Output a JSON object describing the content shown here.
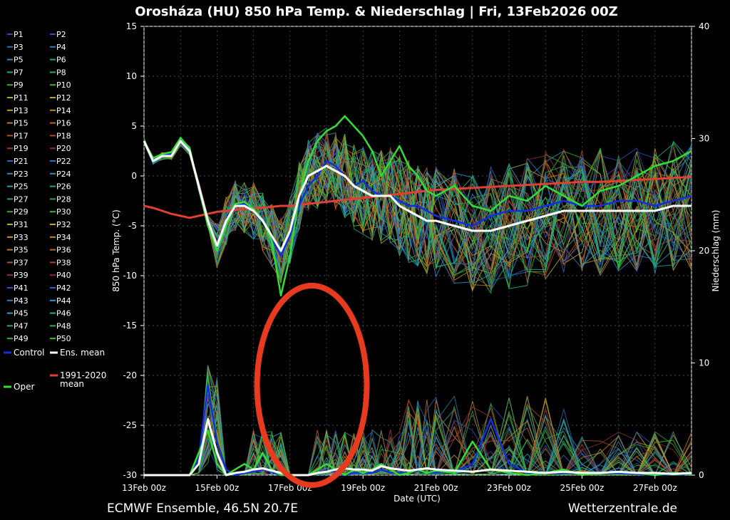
{
  "chart_data": {
    "type": "line",
    "title": "Orosháza  (HU)  850 hPa Temp. & Niederschlag | Fri, 13Feb2026 00Z",
    "xlabel": "Date (UTC)",
    "ylabel_left": "850 hPa Temp. (°C)",
    "ylabel_right": "Niederschlag (mm)",
    "ylim_left": [
      -30,
      15
    ],
    "ylim_right": [
      0,
      40
    ],
    "x_ticks": [
      "13Feb 00z",
      "15Feb 00z",
      "17Feb 00z",
      "19Feb 00z",
      "21Feb 00z",
      "23Feb 00z",
      "25Feb 00z",
      "27Feb 00z"
    ],
    "y_ticks_left": [
      15,
      10,
      5,
      0,
      -5,
      -10,
      -15,
      -20,
      -25,
      -30
    ],
    "y_ticks_right": [
      40,
      30,
      20,
      10,
      0
    ],
    "grid": "dashed",
    "legend_position": "left",
    "x_day": [
      0,
      0.25,
      0.5,
      0.75,
      1,
      1.25,
      1.5,
      1.75,
      2,
      2.25,
      2.5,
      2.75,
      3,
      3.25,
      3.5,
      3.75,
      4,
      4.25,
      4.5,
      4.75,
      5,
      5.25,
      5.5,
      5.75,
      6,
      6.25,
      6.5,
      6.75,
      7,
      7.25,
      7.5,
      7.75,
      8,
      8.5,
      9,
      9.5,
      10,
      10.5,
      11,
      11.5,
      12,
      12.5,
      13,
      13.5,
      14,
      14.5,
      15
    ],
    "series": [
      {
        "name": "Ens. mean",
        "color": "#ffffff",
        "axis": "left",
        "values": [
          3.5,
          1.5,
          2,
          2,
          3.5,
          2.5,
          -1,
          -4.5,
          -7,
          -4.5,
          -3,
          -3,
          -3.5,
          -4.5,
          -6,
          -7.5,
          -5.5,
          -2,
          0,
          0.5,
          1,
          0.5,
          0,
          -1,
          -1.5,
          -2,
          -2,
          -2,
          -3,
          -3.5,
          -4,
          -4.5,
          -4.5,
          -5,
          -5.5,
          -5.5,
          -5,
          -4.5,
          -4,
          -3.5,
          -3.5,
          -3.5,
          -3.5,
          -3.5,
          -3.5,
          -3,
          -3
        ]
      },
      {
        "name": "1991-2020 mean",
        "color": "#e04030",
        "axis": "left",
        "values": [
          -3,
          -3.2,
          -3.5,
          -3.8,
          -4,
          -4.2,
          -4,
          -3.8,
          -3.6,
          -3.5,
          -3.4,
          -3.3,
          -3.2,
          -3.2,
          -3.1,
          -3,
          -3,
          -2.9,
          -2.8,
          -2.7,
          -2.6,
          -2.5,
          -2.4,
          -2.3,
          -2.2,
          -2.1,
          -2,
          -1.9,
          -1.8,
          -1.7,
          -1.6,
          -1.5,
          -1.4,
          -1.3,
          -1.2,
          -1.1,
          -1,
          -0.9,
          -0.8,
          -0.7,
          -0.6,
          -0.6,
          -0.5,
          -0.4,
          -0.3,
          -0.2,
          -0.1
        ]
      },
      {
        "name": "Oper",
        "color": "#33dd33",
        "axis": "left",
        "values": [
          3.5,
          1.8,
          2.2,
          2.4,
          3.8,
          2.8,
          -1.2,
          -5,
          -7.5,
          -5,
          -2.8,
          -2.6,
          -3.3,
          -4.4,
          -6.5,
          -12,
          -8,
          -2,
          1.5,
          3.5,
          4.5,
          5,
          6,
          5,
          4,
          2.5,
          0,
          1.5,
          3,
          1,
          0,
          -1.5,
          -2,
          -1,
          -3,
          -3.5,
          -2,
          -2.5,
          -1,
          -2,
          -3,
          -1.5,
          -1,
          0,
          1,
          1.5,
          2.5
        ]
      },
      {
        "name": "Control",
        "color": "#1030dd",
        "axis": "left",
        "values": [
          3.5,
          1.6,
          2,
          2.2,
          3.6,
          2.6,
          -1,
          -4.6,
          -7.2,
          -4.8,
          -3,
          -2.8,
          -3.6,
          -4.6,
          -6.2,
          -8,
          -6,
          -3,
          -1,
          0,
          1.5,
          1,
          0,
          -1,
          -0.5,
          -1.5,
          -2,
          -2,
          -2.5,
          -3,
          -3,
          -3.5,
          -4,
          -4.5,
          -5,
          -4,
          -3.5,
          -3.5,
          -3,
          -2.5,
          -3,
          -3,
          -2.5,
          -2.5,
          -3,
          -2.5,
          -2
        ]
      },
      {
        "name": "Ens. mean",
        "color": "#ffffff",
        "axis": "right",
        "values": [
          0,
          0,
          0,
          0,
          0,
          0,
          1,
          5,
          2,
          0,
          0.2,
          0.3,
          0.5,
          0.6,
          0.4,
          0.2,
          0,
          0,
          0,
          0.2,
          0.3,
          0.5,
          0.6,
          0.5,
          0.5,
          0.4,
          0.8,
          0.6,
          0.5,
          0.4,
          0.5,
          0.6,
          0.5,
          0.4,
          0.3,
          0.5,
          0.4,
          0.3,
          0.2,
          0.3,
          0.2,
          0.2,
          0.3,
          0.2,
          0.2,
          0.1,
          0.2
        ]
      },
      {
        "name": "Oper",
        "color": "#33dd33",
        "axis": "right",
        "values": [
          0,
          0,
          0,
          0,
          0,
          0,
          2,
          4,
          1,
          0,
          0.5,
          1,
          0.5,
          2,
          0.5,
          0,
          0,
          0,
          0,
          0.5,
          1,
          0.5,
          0,
          0.5,
          0.2,
          0.5,
          1,
          0.5,
          0,
          0.2,
          0.5,
          0.2,
          0.4,
          0.2,
          3,
          0.5,
          0.2,
          0,
          0.2,
          0.5,
          0,
          0.2,
          0.3,
          0.2,
          0,
          0.2,
          0.1
        ]
      },
      {
        "name": "Control",
        "color": "#1030dd",
        "axis": "right",
        "values": [
          0,
          0,
          0,
          0,
          0,
          0,
          1.5,
          8,
          3,
          0.5,
          0,
          0.2,
          0.3,
          0.5,
          0.3,
          0,
          0,
          0,
          0,
          0.2,
          0.4,
          0.3,
          0,
          0.2,
          0.2,
          0.2,
          0.5,
          0.2,
          0.2,
          0.2,
          0.4,
          0.2,
          0.2,
          0.3,
          1,
          5,
          1,
          0.2,
          0.2,
          0.2,
          0.2,
          0.2,
          0.2,
          0.1,
          0,
          0.1,
          0.1
        ]
      }
    ]
  },
  "legend": {
    "members": [
      {
        "label": "P1",
        "color": "#2a4db5"
      },
      {
        "label": "P2",
        "color": "#2a4db5"
      },
      {
        "label": "P3",
        "color": "#2a6fb5"
      },
      {
        "label": "P4",
        "color": "#2a7fb0"
      },
      {
        "label": "P5",
        "color": "#2a90c0"
      },
      {
        "label": "P6",
        "color": "#22a08a"
      },
      {
        "label": "P7",
        "color": "#22a870"
      },
      {
        "label": "P8",
        "color": "#22b050"
      },
      {
        "label": "P9",
        "color": "#2ab830"
      },
      {
        "label": "P10",
        "color": "#3cbc20"
      },
      {
        "label": "P11",
        "color": "#a8b020"
      },
      {
        "label": "P12",
        "color": "#b8a820"
      },
      {
        "label": "P13",
        "color": "#c0a020"
      },
      {
        "label": "P14",
        "color": "#c08a20"
      },
      {
        "label": "P15",
        "color": "#c07820"
      },
      {
        "label": "P16",
        "color": "#b86820"
      },
      {
        "label": "P17",
        "color": "#b05028"
      },
      {
        "label": "P18",
        "color": "#a84828"
      },
      {
        "label": "P19",
        "color": "#a03a2a"
      },
      {
        "label": "P20",
        "color": "#8a2a2a"
      },
      {
        "label": "P21",
        "color": "#3060c0"
      },
      {
        "label": "P22",
        "color": "#2a70c0"
      },
      {
        "label": "P23",
        "color": "#2a88c8"
      },
      {
        "label": "P24",
        "color": "#2a90c0"
      },
      {
        "label": "P25",
        "color": "#2aa0b0"
      },
      {
        "label": "P26",
        "color": "#22a090"
      },
      {
        "label": "P27",
        "color": "#22a870"
      },
      {
        "label": "P28",
        "color": "#22a860"
      },
      {
        "label": "P29",
        "color": "#28b040"
      },
      {
        "label": "P30",
        "color": "#30b830"
      },
      {
        "label": "P31",
        "color": "#b0b020"
      },
      {
        "label": "P32",
        "color": "#c0a820"
      },
      {
        "label": "P33",
        "color": "#c89a20"
      },
      {
        "label": "P34",
        "color": "#c88820"
      },
      {
        "label": "P35",
        "color": "#c07828"
      },
      {
        "label": "P36",
        "color": "#b86828"
      },
      {
        "label": "P37",
        "color": "#b05030"
      },
      {
        "label": "P38",
        "color": "#a84030"
      },
      {
        "label": "P39",
        "color": "#983030"
      },
      {
        "label": "P40",
        "color": "#882a2a"
      },
      {
        "label": "P41",
        "color": "#3050c8"
      },
      {
        "label": "P42",
        "color": "#2a60c0"
      },
      {
        "label": "P43",
        "color": "#2a80c8"
      },
      {
        "label": "P44",
        "color": "#2a98c8"
      },
      {
        "label": "P45",
        "color": "#22a8b8"
      },
      {
        "label": "P46",
        "color": "#22a898"
      },
      {
        "label": "P47",
        "color": "#22b070"
      },
      {
        "label": "P48",
        "color": "#28b050"
      },
      {
        "label": "P49",
        "color": "#30b830"
      },
      {
        "label": "P50",
        "color": "#40c020"
      }
    ],
    "control": {
      "label": "Control",
      "color": "#1030dd"
    },
    "ens_mean": {
      "label": "Ens. mean",
      "color": "#ffffff"
    },
    "clim_mean": {
      "label": "1991-2020\nmean",
      "color": "#e04030"
    },
    "oper": {
      "label": "Oper",
      "color": "#33dd33"
    }
  },
  "footer": {
    "left": "ECMWF Ensemble, 46.5N 20.7E",
    "right": "Wetterzentrale.de"
  },
  "annotation": {
    "shape": "ellipse",
    "color": "#e83a1e"
  }
}
